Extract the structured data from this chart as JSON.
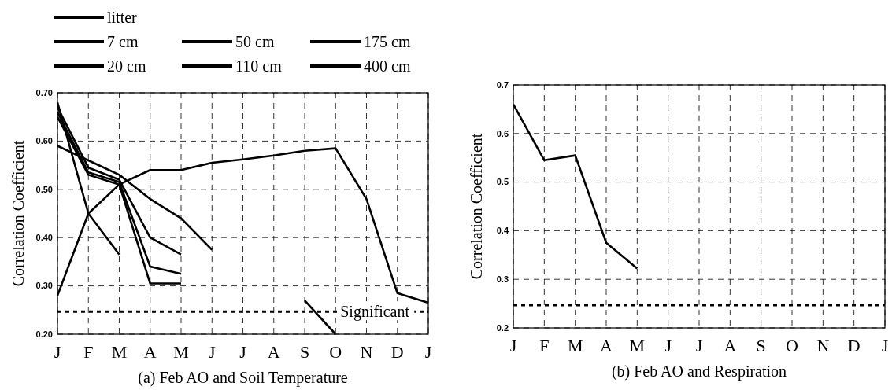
{
  "chart_data": [
    {
      "type": "line",
      "title": "(a) Feb AO and Soil Temperature",
      "ylabel": "Correlation Coefficient",
      "categories": [
        "J",
        "F",
        "M",
        "A",
        "M",
        "J",
        "J",
        "A",
        "S",
        "O",
        "N",
        "D",
        "J"
      ],
      "ylim": [
        0.2,
        0.7
      ],
      "yticks": [
        {
          "value": 0.2,
          "label": "0.20"
        },
        {
          "value": 0.3,
          "label": "0.30"
        },
        {
          "value": 0.4,
          "label": "0.40"
        },
        {
          "value": 0.5,
          "label": "0.50"
        },
        {
          "value": 0.6,
          "label": "0.60"
        },
        {
          "value": 0.7,
          "label": "0.70"
        }
      ],
      "grid": true,
      "legend": "top left",
      "line_style": "solid",
      "marker": "none",
      "ref_lines": [
        {
          "axis": "y",
          "value": 0.247,
          "label": "Significant",
          "line_style": "dotted",
          "color": "#000000"
        }
      ],
      "series": [
        {
          "name": "litter",
          "color": "#000000",
          "values": [
            0.68,
            0.45,
            0.365,
            null,
            null,
            null,
            null,
            null,
            null,
            null,
            null,
            null,
            null
          ]
        },
        {
          "name": "7 cm",
          "color": "#000000",
          "values": [
            0.67,
            0.545,
            0.52,
            0.4,
            0.365,
            null,
            null,
            null,
            null,
            null,
            null,
            null,
            null
          ]
        },
        {
          "name": "20 cm",
          "color": "#000000",
          "values": [
            0.66,
            0.535,
            0.515,
            0.34,
            0.325,
            null,
            null,
            null,
            null,
            null,
            null,
            null,
            null
          ]
        },
        {
          "name": "50 cm",
          "color": "#000000",
          "values": [
            0.65,
            0.53,
            0.51,
            0.305,
            0.305,
            null,
            null,
            null,
            null,
            null,
            null,
            null,
            null
          ]
        },
        {
          "name": "110 cm",
          "color": "#000000",
          "values": [
            0.59,
            0.56,
            0.53,
            0.48,
            0.44,
            0.375,
            null,
            null,
            null,
            null,
            null,
            null,
            null
          ]
        },
        {
          "name": "175 cm",
          "color": "#000000",
          "values": [
            null,
            null,
            null,
            null,
            null,
            null,
            null,
            null,
            0.27,
            0.2,
            null,
            null,
            null
          ]
        },
        {
          "name": "400 cm",
          "color": "#000000",
          "values": [
            0.28,
            0.45,
            0.51,
            0.54,
            0.54,
            0.555,
            0.562,
            0.57,
            0.58,
            0.585,
            0.48,
            0.285,
            0.265
          ]
        }
      ]
    },
    {
      "type": "line",
      "title": "(b) Feb AO and Respiration",
      "ylabel": "Correlation Coefficient",
      "categories": [
        "J",
        "F",
        "M",
        "A",
        "M",
        "J",
        "J",
        "A",
        "S",
        "O",
        "N",
        "D",
        "J"
      ],
      "ylim": [
        0.2,
        0.7
      ],
      "yticks": [
        0.2,
        0.3,
        0.4,
        0.5,
        0.6,
        0.7
      ],
      "grid": true,
      "line_style": "solid",
      "marker": "none",
      "ref_lines": [
        {
          "axis": "y",
          "value": 0.247,
          "line_style": "dotted",
          "color": "#000000"
        }
      ],
      "series": [
        {
          "color": "#000000",
          "values": [
            0.66,
            0.545,
            0.555,
            0.375,
            0.322,
            null,
            null,
            null,
            null,
            null,
            null,
            null,
            null
          ]
        }
      ]
    }
  ]
}
